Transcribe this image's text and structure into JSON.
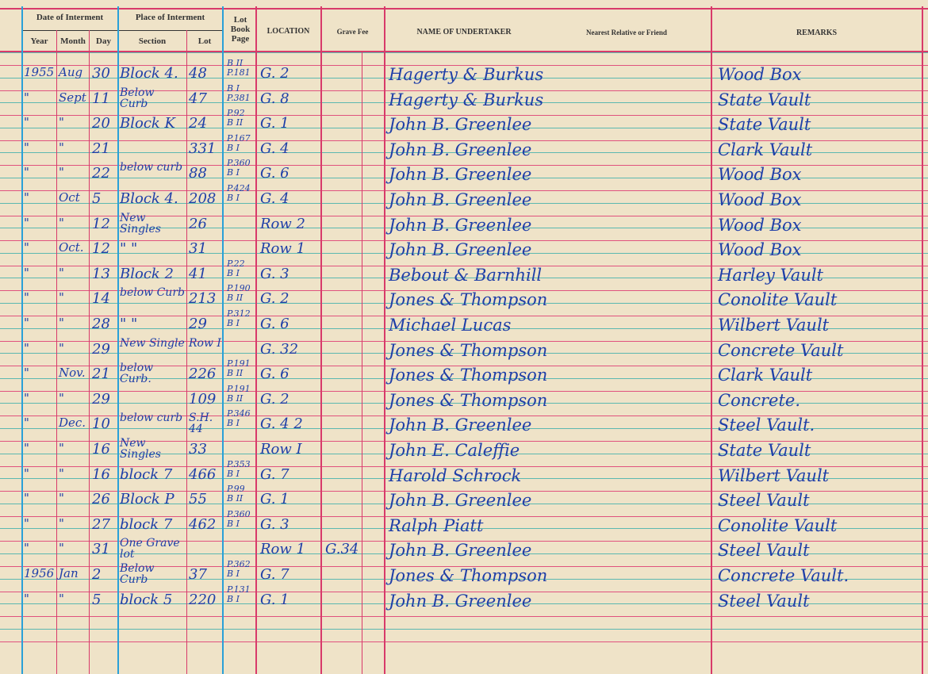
{
  "header": {
    "date_group": "Date of Interment",
    "year": "Year",
    "month": "Month",
    "day": "Day",
    "place_group": "Place of Interment",
    "section": "Section",
    "lot": "Lot",
    "lot_book_page": "Lot Book Page",
    "location": "LOCATION",
    "grave_fee": "Grave Fee",
    "undertaker": "NAME OF UNDERTAKER",
    "relative": "Nearest Relative or Friend",
    "remarks": "REMARKS"
  },
  "rows": [
    {
      "year": "1955",
      "month": "Aug",
      "day": "30",
      "section": "Block 4.",
      "lot": "48",
      "page": "B II P.181",
      "location": "G. 2",
      "fee": "",
      "undertaker": "Hagerty & Burkus",
      "remarks": "Wood Box"
    },
    {
      "year": "\"",
      "month": "Sept",
      "day": "11",
      "section": "Below Curb",
      "lot": "47",
      "page": "B I P.381",
      "location": "G. 8",
      "fee": "",
      "undertaker": "Hagerty & Burkus",
      "remarks": "State Vault"
    },
    {
      "year": "\"",
      "month": "\"",
      "day": "20",
      "section": "Block K",
      "lot": "24",
      "page": "P.92 B II",
      "location": "G. 1",
      "fee": "",
      "undertaker": "John B. Greenlee",
      "remarks": "State Vault"
    },
    {
      "year": "\"",
      "month": "\"",
      "day": "21",
      "section": "",
      "lot": "331",
      "page": "P.167 B I",
      "location": "G. 4",
      "fee": "",
      "undertaker": "John B. Greenlee",
      "remarks": "Clark Vault"
    },
    {
      "year": "\"",
      "month": "\"",
      "day": "22",
      "section": "below curb",
      "lot": "88",
      "page": "P.360 B I",
      "location": "G. 6",
      "fee": "",
      "undertaker": "John B. Greenlee",
      "remarks": "Wood Box"
    },
    {
      "year": "\"",
      "month": "Oct",
      "day": "5",
      "section": "Block 4.",
      "lot": "208",
      "page": "P.424 B I",
      "location": "G. 4",
      "fee": "",
      "undertaker": "John B. Greenlee",
      "remarks": "Wood Box"
    },
    {
      "year": "\"",
      "month": "\"",
      "day": "12",
      "section": "New Singles",
      "lot": "26",
      "page": "",
      "location": "Row 2",
      "fee": "",
      "undertaker": "John B. Greenlee",
      "remarks": "Wood Box"
    },
    {
      "year": "\"",
      "month": "Oct.",
      "day": "12",
      "section": "\" \"",
      "lot": "31",
      "page": "",
      "location": "Row 1",
      "fee": "",
      "undertaker": "John B. Greenlee",
      "remarks": "Wood Box"
    },
    {
      "year": "\"",
      "month": "\"",
      "day": "13",
      "section": "Block 2",
      "lot": "41",
      "page": "P.22 B I",
      "location": "G. 3",
      "fee": "",
      "undertaker": "Bebout & Barnhill",
      "remarks": "Harley Vault"
    },
    {
      "year": "\"",
      "month": "\"",
      "day": "14",
      "section": "below Curb",
      "lot": "213",
      "page": "P.190 B II",
      "location": "G. 2",
      "fee": "",
      "undertaker": "Jones & Thompson",
      "remarks": "Conolite Vault"
    },
    {
      "year": "\"",
      "month": "\"",
      "day": "28",
      "section": "\" \"",
      "lot": "29",
      "page": "P.312 B I",
      "location": "G. 6",
      "fee": "",
      "undertaker": "Michael Lucas",
      "remarks": "Wilbert Vault"
    },
    {
      "year": "\"",
      "month": "\"",
      "day": "29",
      "section": "New Single",
      "lot": "Row I",
      "page": "",
      "location": "G. 32",
      "fee": "",
      "undertaker": "Jones & Thompson",
      "remarks": "Concrete Vault"
    },
    {
      "year": "\"",
      "month": "Nov.",
      "day": "21",
      "section": "below Curb.",
      "lot": "226",
      "page": "P.191 B II",
      "location": "G. 6",
      "fee": "",
      "undertaker": "Jones & Thompson",
      "remarks": "Clark Vault"
    },
    {
      "year": "\"",
      "month": "\"",
      "day": "29",
      "section": "",
      "lot": "109",
      "page": "P.191 B II",
      "location": "G. 2",
      "fee": "",
      "undertaker": "Jones & Thompson",
      "remarks": "Concrete."
    },
    {
      "year": "\"",
      "month": "Dec.",
      "day": "10",
      "section": "below curb",
      "lot": "S.H. 44",
      "page": "P.346 B I",
      "location": "G. 4 2",
      "fee": "",
      "undertaker": "John B. Greenlee",
      "remarks": "Steel Vault."
    },
    {
      "year": "\"",
      "month": "\"",
      "day": "16",
      "section": "New Singles",
      "lot": "33",
      "page": "",
      "location": "Row I",
      "fee": "",
      "undertaker": "John E. Caleffie",
      "remarks": "State Vault"
    },
    {
      "year": "\"",
      "month": "\"",
      "day": "16",
      "section": "block 7",
      "lot": "466",
      "page": "P.353 B I",
      "location": "G. 7",
      "fee": "",
      "undertaker": "Harold Schrock",
      "remarks": "Wilbert Vault"
    },
    {
      "year": "\"",
      "month": "\"",
      "day": "26",
      "section": "Block P",
      "lot": "55",
      "page": "P.99 B II",
      "location": "G. 1",
      "fee": "",
      "undertaker": "John B. Greenlee",
      "remarks": "Steel Vault"
    },
    {
      "year": "\"",
      "month": "\"",
      "day": "27",
      "section": "block 7",
      "lot": "462",
      "page": "P.360 B I",
      "location": "G. 3",
      "fee": "",
      "undertaker": "Ralph Piatt",
      "remarks": "Conolite Vault"
    },
    {
      "year": "\"",
      "month": "\"",
      "day": "31",
      "section": "One Grave lot",
      "lot": "",
      "page": "",
      "location": "Row 1",
      "fee": "G.34",
      "undertaker": "John B. Greenlee",
      "remarks": "Steel Vault"
    },
    {
      "year": "1956",
      "month": "Jan",
      "day": "2",
      "section": "Below Curb",
      "lot": "37",
      "page": "P.362 B I",
      "location": "G. 7",
      "fee": "",
      "undertaker": "Jones & Thompson",
      "remarks": "Concrete Vault."
    },
    {
      "year": "\"",
      "month": "\"",
      "day": "5",
      "section": "block 5",
      "lot": "220",
      "page": "P.131 B I",
      "location": "G. 1",
      "fee": "",
      "undertaker": "John B. Greenlee",
      "remarks": "Steel Vault"
    }
  ]
}
